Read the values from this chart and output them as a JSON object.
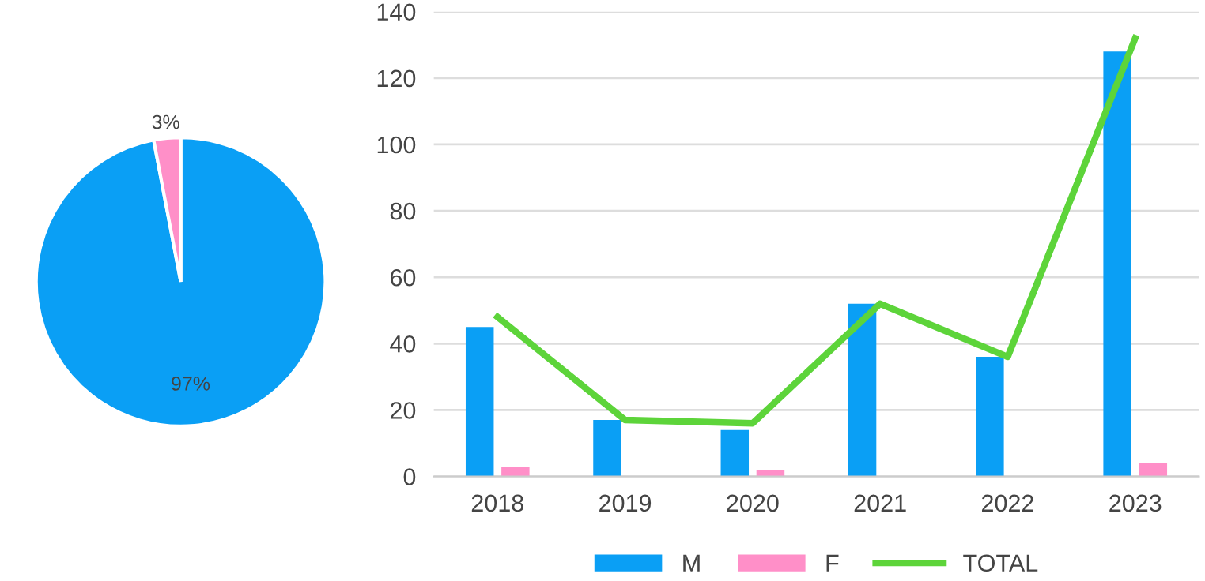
{
  "chart_data": [
    {
      "type": "pie",
      "categories": [
        null,
        null
      ],
      "values": [
        97,
        3
      ],
      "colors": [
        "#0a9ff5",
        "#ff8fc8"
      ],
      "value_labels": [
        "97%",
        "3%"
      ]
    },
    {
      "type": "bar",
      "categories": [
        "2018",
        "2019",
        "2020",
        "2021",
        "2022",
        "2023"
      ],
      "series": [
        {
          "name": "M",
          "color": "#0a9ff5",
          "values": [
            45,
            17,
            14,
            52,
            36,
            128
          ]
        },
        {
          "name": "F",
          "color": "#ff8fc8",
          "values": [
            3,
            0,
            2,
            0,
            0,
            4
          ]
        },
        {
          "name": "TOTAL",
          "type": "line",
          "color": "#5dd43a",
          "values": [
            48,
            17,
            16,
            52,
            36,
            132
          ]
        }
      ],
      "ylim": [
        0,
        140
      ],
      "yticks": [
        0,
        20,
        40,
        60,
        80,
        100,
        120,
        140
      ],
      "grid": "y",
      "legend": "bottom"
    }
  ]
}
